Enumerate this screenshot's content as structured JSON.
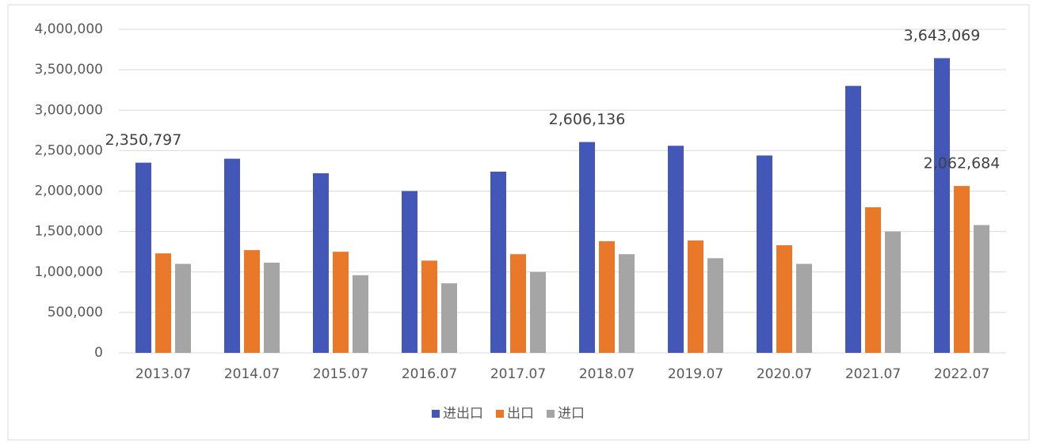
{
  "chart_data": {
    "type": "bar",
    "categories": [
      "2013.07",
      "2014.07",
      "2015.07",
      "2016.07",
      "2017.07",
      "2018.07",
      "2019.07",
      "2020.07",
      "2021.07",
      "2022.07"
    ],
    "series": [
      {
        "name": "进出口",
        "color": "#4357b8",
        "values": [
          2350797,
          2400000,
          2220000,
          2000000,
          2240000,
          2606136,
          2560000,
          2440000,
          3300000,
          3643069
        ],
        "value_labels": [
          "2,350,797",
          null,
          null,
          null,
          null,
          "2,606,136",
          null,
          null,
          null,
          "3,643,069"
        ]
      },
      {
        "name": "出口",
        "color": "#e8782a",
        "values": [
          1230000,
          1270000,
          1250000,
          1140000,
          1220000,
          1380000,
          1390000,
          1330000,
          1800000,
          2062684
        ],
        "value_labels": [
          null,
          null,
          null,
          null,
          null,
          null,
          null,
          null,
          null,
          "2,062,684"
        ]
      },
      {
        "name": "进口",
        "color": "#a5a5a5",
        "values": [
          1100000,
          1115000,
          960000,
          860000,
          1000000,
          1220000,
          1170000,
          1100000,
          1500000,
          1580000
        ]
      }
    ],
    "ylim": [
      0,
      4000000
    ],
    "yticks": [
      0,
      {
        "value": 500000,
        "label": "500,000"
      },
      {
        "value": 1000000,
        "label": "1,000,000"
      },
      {
        "value": 1500000,
        "label": "1,500,000"
      },
      {
        "value": 2000000,
        "label": "2,000,000"
      },
      {
        "value": 2500000,
        "label": "2,500,000"
      },
      {
        "value": 3000000,
        "label": "3,000,000"
      },
      {
        "value": 3500000,
        "label": "3,500,000"
      },
      {
        "value": 4000000,
        "label": "4,000,000"
      }
    ],
    "grid": true,
    "legend": "bottom"
  }
}
